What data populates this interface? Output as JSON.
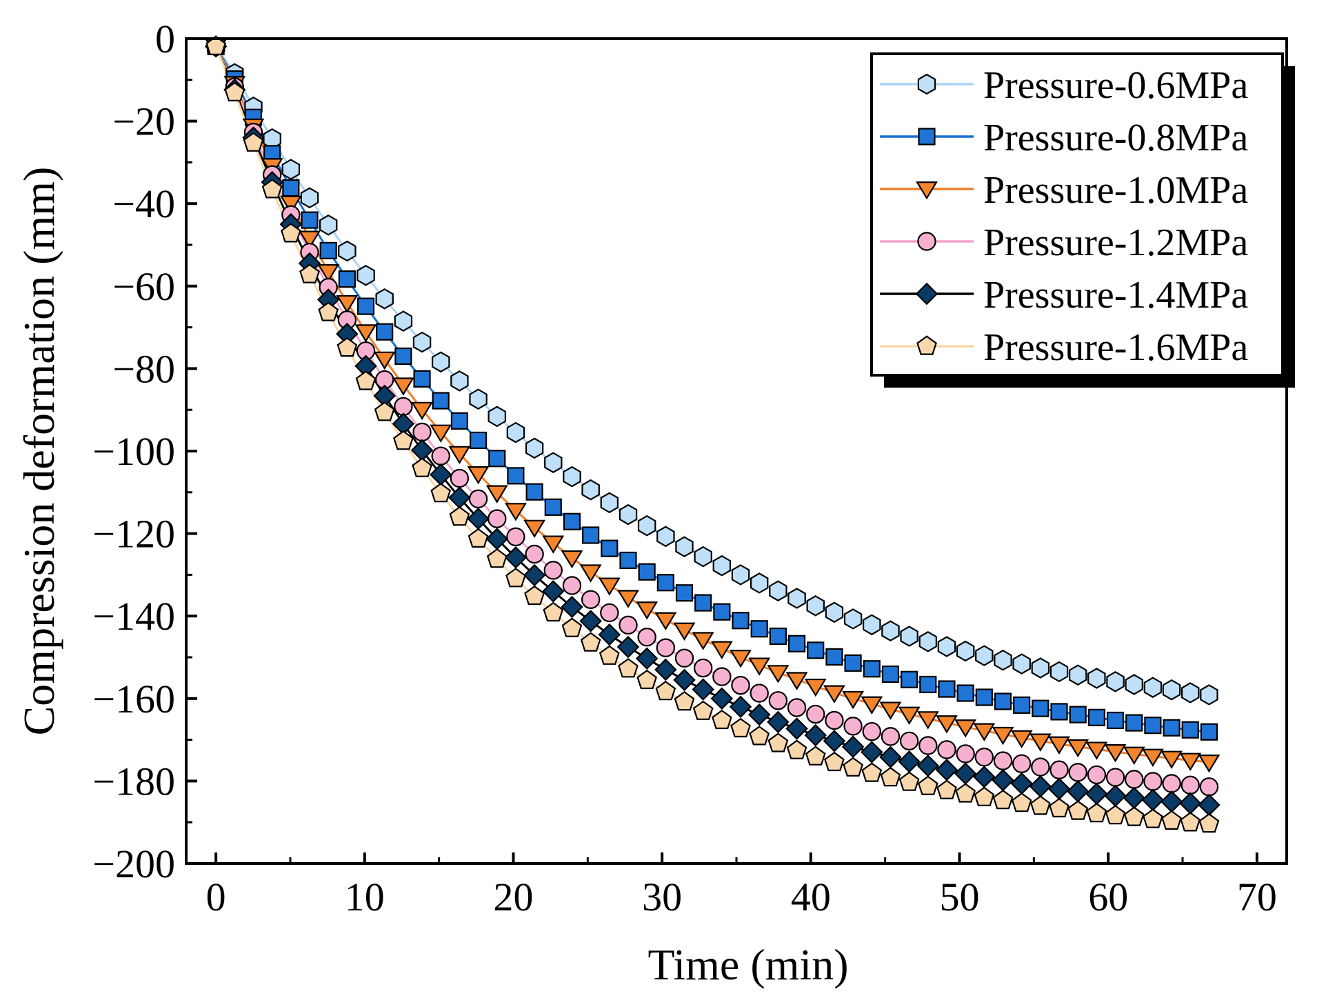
{
  "chart_data": {
    "type": "line",
    "title": "",
    "xlabel": "Time (min)",
    "ylabel": "Compression deformation (mm)",
    "xlim": [
      -2,
      72
    ],
    "ylim": [
      -200,
      0
    ],
    "xticks": [
      0,
      10,
      20,
      30,
      40,
      50,
      60,
      70
    ],
    "yticks": [
      0,
      -20,
      -40,
      -60,
      -80,
      -100,
      -120,
      -140,
      -160,
      -180,
      -200
    ],
    "xtick_labels": [
      "0",
      "10",
      "20",
      "30",
      "40",
      "50",
      "60",
      "70"
    ],
    "ytick_labels": [
      "0",
      "−20",
      "−40",
      "−60",
      "−80",
      "−100",
      "−120",
      "−140",
      "−160",
      "−180",
      "−200"
    ],
    "grid": false,
    "legend_position": "top-right",
    "x_start": 0,
    "x_step": 1.26,
    "n_points": 54,
    "series": [
      {
        "name": "Pressure-0.6MPa",
        "marker": "hexagon",
        "line_color": "#a9d4f5",
        "fill": "#bfe0f8",
        "asymptote": -170.3,
        "tau": 24.5
      },
      {
        "name": "Pressure-0.8MPa",
        "marker": "square",
        "line_color": "#1a6fd1",
        "fill": "#1f74d6",
        "asymptote": -176.6,
        "tau": 22.0
      },
      {
        "name": "Pressure-1.0MPa",
        "marker": "triangle-down",
        "line_color": "#ef7f2a",
        "fill": "#f3852d",
        "asymptote": -182.3,
        "tau": 20.4
      },
      {
        "name": "Pressure-1.2MPa",
        "marker": "circle",
        "line_color": "#f4a6c9",
        "fill": "#f7b1d0",
        "asymptote": -187.5,
        "tau": 19.5
      },
      {
        "name": "Pressure-1.4MPa",
        "marker": "diamond",
        "line_color": "#000000",
        "fill": "#0a3a66",
        "asymptote": -191.3,
        "tau": 18.8
      },
      {
        "name": "Pressure-1.6MPa",
        "marker": "pentagon",
        "line_color": "#f9d7a6",
        "fill": "#f7d7ab",
        "asymptote": -195.4,
        "tau": 18.2
      }
    ]
  }
}
